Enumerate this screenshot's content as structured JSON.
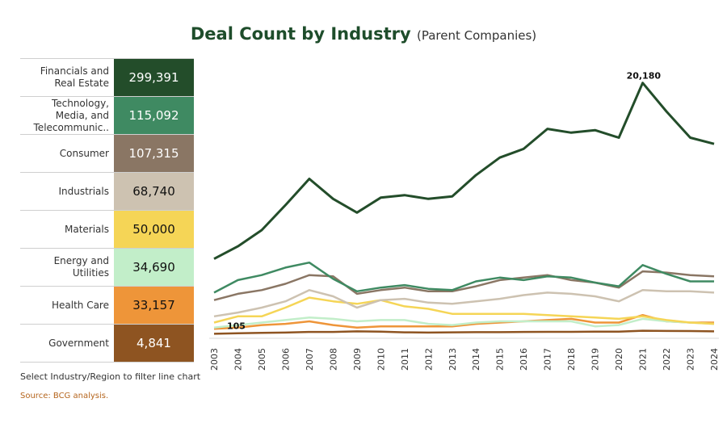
{
  "header": {
    "title": "Deal Count by Industry",
    "subtitle": "(Parent Companies)"
  },
  "industries": [
    {
      "name": "Financials and Real Estate",
      "total": "299,391",
      "color": "#234d2a",
      "text_color": "#ffffff"
    },
    {
      "name": "Technology, Media, and Telecommunic..",
      "total": "115,092",
      "color": "#3f8a62",
      "text_color": "#ffffff"
    },
    {
      "name": "Consumer",
      "total": "107,315",
      "color": "#8a7664",
      "text_color": "#ffffff"
    },
    {
      "name": "Industrials",
      "total": "68,740",
      "color": "#cdc2b1",
      "text_color": "#111111"
    },
    {
      "name": "Materials",
      "total": "50,000",
      "color": "#f5d556",
      "text_color": "#111111"
    },
    {
      "name": "Energy and Utilities",
      "total": "34,690",
      "color": "#c2eec9",
      "text_color": "#111111"
    },
    {
      "name": "Health Care",
      "total": "33,157",
      "color": "#ee9539",
      "text_color": "#111111"
    },
    {
      "name": "Government",
      "total": "4,841",
      "color": "#8e5421",
      "text_color": "#ffffff"
    }
  ],
  "footer": {
    "note": "Select Industry/Region to filter line chart",
    "source": "Source: BCG analysis."
  },
  "chart_data": {
    "type": "line",
    "title": "Deal Count by Industry",
    "subtitle": "(Parent Companies)",
    "xlabel": "",
    "ylabel": "",
    "ylim": [
      0,
      21000
    ],
    "grid": false,
    "categories": [
      "2003",
      "2004",
      "2005",
      "2006",
      "2007",
      "2008",
      "2009",
      "2010",
      "2011",
      "2012",
      "2013",
      "2014",
      "2015",
      "2016",
      "2017",
      "2018",
      "2019",
      "2020",
      "2021",
      "2022",
      "2023",
      "2024"
    ],
    "annotations": [
      {
        "series": "Financials and Real Estate",
        "x": "2021",
        "label": "20,180"
      },
      {
        "series": "Government",
        "x": "2003",
        "label": "105"
      }
    ],
    "series": [
      {
        "name": "Financials and Real Estate",
        "color": "#234d2a",
        "values": [
          6100,
          7100,
          8400,
          10400,
          12500,
          10900,
          9800,
          11000,
          11200,
          10900,
          11100,
          12800,
          14200,
          14900,
          16500,
          16200,
          16400,
          15800,
          20180,
          17900,
          15800,
          15300
        ]
      },
      {
        "name": "Technology, Media, and Telecommunic..",
        "color": "#3f8a62",
        "values": [
          3400,
          4400,
          4800,
          5400,
          5800,
          4500,
          3500,
          3800,
          4000,
          3700,
          3600,
          4300,
          4600,
          4400,
          4700,
          4600,
          4200,
          3900,
          5600,
          4900,
          4300,
          4300
        ]
      },
      {
        "name": "Consumer",
        "color": "#8a7664",
        "values": [
          2800,
          3300,
          3600,
          4100,
          4800,
          4700,
          3300,
          3600,
          3800,
          3500,
          3500,
          3900,
          4400,
          4600,
          4800,
          4400,
          4200,
          3800,
          5100,
          5000,
          4800,
          4700
        ]
      },
      {
        "name": "Industrials",
        "color": "#cdc2b1",
        "values": [
          1500,
          1800,
          2200,
          2700,
          3600,
          3100,
          2200,
          2800,
          2900,
          2600,
          2500,
          2700,
          2900,
          3200,
          3400,
          3300,
          3100,
          2700,
          3600,
          3500,
          3500,
          3400
        ]
      },
      {
        "name": "Materials",
        "color": "#f5d556",
        "values": [
          1000,
          1500,
          1500,
          2200,
          3000,
          2700,
          2500,
          2800,
          2300,
          2100,
          1700,
          1700,
          1700,
          1700,
          1600,
          1500,
          1400,
          1300,
          1500,
          1200,
          1000,
          900
        ]
      },
      {
        "name": "Energy and Utilities",
        "color": "#c2eec9",
        "values": [
          600,
          800,
          1000,
          1200,
          1400,
          1300,
          1100,
          1200,
          1200,
          900,
          800,
          1000,
          1100,
          1100,
          1100,
          1100,
          700,
          800,
          1300,
          1100,
          1000,
          900
        ]
      },
      {
        "name": "Health Care",
        "color": "#ee9539",
        "values": [
          500,
          600,
          800,
          900,
          1100,
          800,
          600,
          700,
          700,
          700,
          700,
          900,
          1000,
          1100,
          1200,
          1300,
          1000,
          1000,
          1600,
          1100,
          1000,
          1000
        ]
      },
      {
        "name": "Government",
        "color": "#8e5421",
        "values": [
          105,
          150,
          180,
          200,
          250,
          250,
          300,
          280,
          220,
          200,
          220,
          230,
          230,
          250,
          260,
          260,
          270,
          270,
          350,
          330,
          320,
          300
        ]
      }
    ]
  }
}
